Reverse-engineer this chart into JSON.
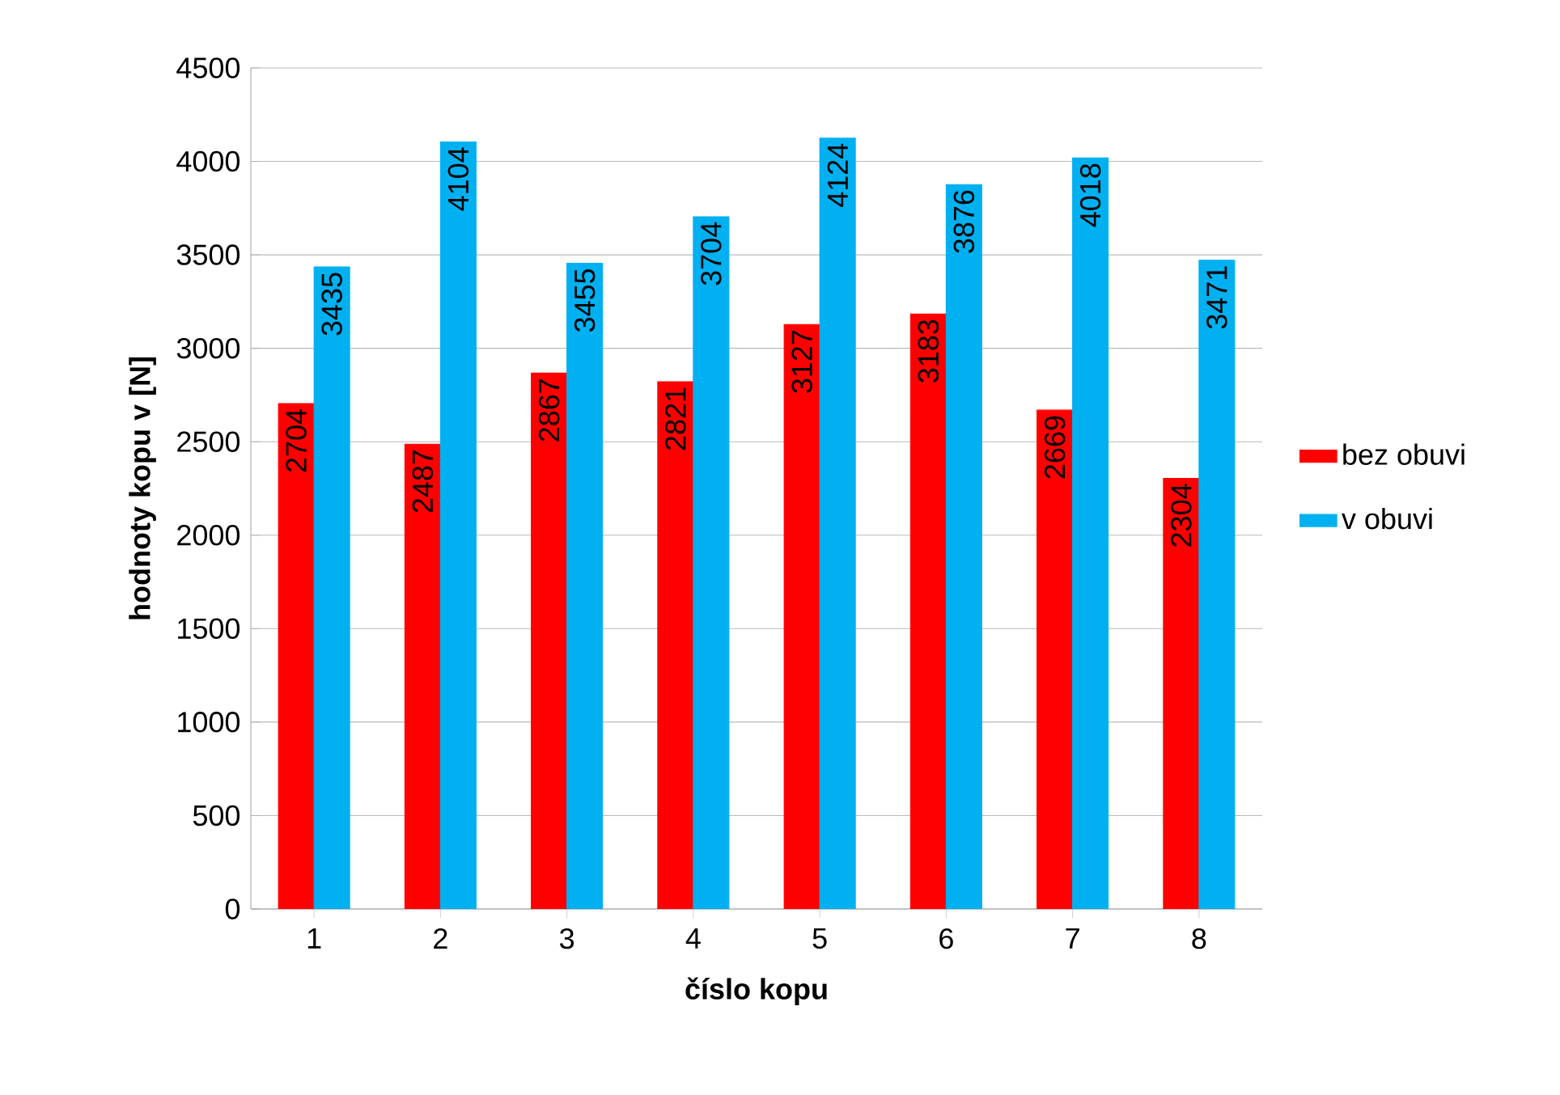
{
  "chart_data": {
    "type": "bar",
    "xlabel": "číslo kopu",
    "ylabel": "hodnoty kopu v [N]",
    "categories": [
      "1",
      "2",
      "3",
      "4",
      "5",
      "6",
      "7",
      "8"
    ],
    "series": [
      {
        "name": "bez obuvi",
        "color": "#ff0000",
        "values": [
          2704,
          2487,
          2867,
          2821,
          3127,
          3183,
          2669,
          2304
        ]
      },
      {
        "name": "v obuvi",
        "color": "#00b0f0",
        "values": [
          3435,
          4104,
          3455,
          3704,
          4124,
          3876,
          4018,
          3471
        ]
      }
    ],
    "ylim": [
      0,
      4500
    ],
    "yticks": [
      0,
      500,
      1000,
      1500,
      2000,
      2500,
      3000,
      3500,
      4000,
      4500
    ],
    "grid": "y",
    "legend": "right",
    "data_labels": true
  }
}
